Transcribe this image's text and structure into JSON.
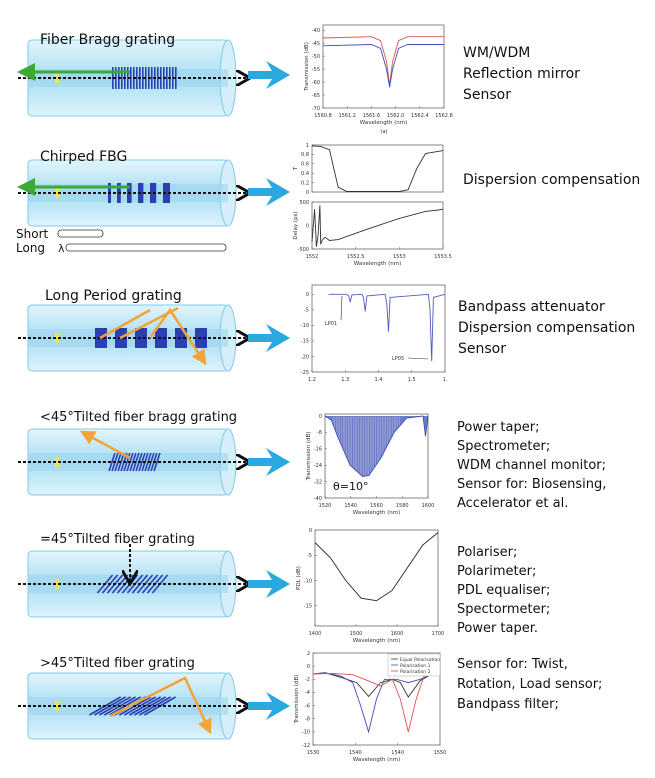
{
  "colors": {
    "fiber": "#bfe6f5",
    "fiber_edge": "#7fcbe8",
    "grating": "#2b3fb0",
    "arrow_blue": "#29a9e0",
    "reflect_green": "#3aa935",
    "cladding_mode": "#f2a33a",
    "core_line": "#111111"
  },
  "rows": [
    {
      "title": "Fiber Bragg grating",
      "applications": [
        "WM/WDM",
        "Reflection mirror",
        "Sensor"
      ]
    },
    {
      "title": "Chirped FBG",
      "applications": [
        "Dispersion compensation"
      ],
      "chirp_labels": {
        "short": "Short",
        "long": "Long",
        "lambda": "λ"
      }
    },
    {
      "title": "Long Period grating",
      "applications": [
        "Bandpass attenuator",
        "Dispersion compensation",
        "Sensor"
      ]
    },
    {
      "title": "<45°Tilted fiber bragg grating",
      "applications": [
        "Power taper;",
        "Spectrometer;",
        "WDM channel monitor;",
        "Sensor for: Biosensing,",
        " Accelerator et al."
      ]
    },
    {
      "title": "=45°Tilted fiber grating",
      "applications": [
        "Polariser;",
        "Polarimeter;",
        "PDL equaliser;",
        "Spectormeter;",
        "Power taper."
      ]
    },
    {
      "title": ">45°Tilted  fiber grating",
      "applications": [
        "Sensor for: Twist,",
        "Rotation, Load sensor;",
        "Bandpass filter;"
      ]
    }
  ],
  "chart_data": [
    {
      "type": "line",
      "xlabel": "Wavelength (nm)",
      "ylabel": "Transmission (dB)",
      "caption": "(a)",
      "xlim": [
        1560.8,
        1562.8
      ],
      "ylim": [
        -70,
        -38
      ],
      "xticks": [
        "1560.8",
        "1561.2",
        "1561.6",
        "1562.0",
        "1562.4",
        "1562.8"
      ],
      "yticks": [
        "-40",
        "-45",
        "-50",
        "-55",
        "-60",
        "-65",
        "-70"
      ],
      "series": [
        {
          "color": "#d9534f",
          "x": [
            1560.8,
            1561.6,
            1561.75,
            1561.85,
            1561.9,
            1561.95,
            1562.05,
            1562.2,
            1562.8
          ],
          "y": [
            -43,
            -42.5,
            -44,
            -52,
            -61,
            -52,
            -44,
            -42.5,
            -42.5
          ]
        },
        {
          "color": "#3f51b5",
          "x": [
            1560.8,
            1561.6,
            1561.75,
            1561.85,
            1561.9,
            1561.95,
            1562.05,
            1562.2,
            1562.8
          ],
          "y": [
            -46,
            -45.5,
            -47,
            -55,
            -62,
            -55,
            -47,
            -45.5,
            -45.5
          ]
        }
      ]
    },
    {
      "type": "line",
      "panels": [
        {
          "ylabel": "T",
          "xlim": [
            1552,
            1553.5
          ],
          "ylim": [
            0,
            1
          ],
          "yticks": [
            "0",
            "0.2",
            "0.4",
            "0.6",
            "0.8",
            "1"
          ],
          "series": [
            {
              "color": "#333",
              "x": [
                1552,
                1552.1,
                1552.2,
                1552.25,
                1552.3,
                1552.4,
                1553,
                1553.1,
                1553.2,
                1553.3,
                1553.5
              ],
              "y": [
                0.98,
                0.97,
                0.9,
                0.5,
                0.1,
                0.01,
                0.01,
                0.05,
                0.5,
                0.82,
                0.88
              ]
            }
          ]
        },
        {
          "ylabel": "Delay (ps)",
          "xlabel": "Wavelength (nm)",
          "xlim": [
            1552,
            1553.5
          ],
          "ylim": [
            -500,
            500
          ],
          "xticks": [
            "1552",
            "1552.5",
            "1553",
            "1553.5"
          ],
          "yticks": [
            "500",
            "0",
            "-500"
          ],
          "series": [
            {
              "color": "#333",
              "x": [
                1552,
                1552.03,
                1552.05,
                1552.07,
                1552.09,
                1552.1,
                1552.12,
                1552.15,
                1552.2,
                1552.3,
                1552.6,
                1553,
                1553.3,
                1553.45,
                1553.5
              ],
              "y": [
                -350,
                350,
                -450,
                -200,
                430,
                -400,
                -300,
                -250,
                -320,
                -300,
                -100,
                150,
                300,
                330,
                350
              ]
            }
          ]
        }
      ]
    },
    {
      "type": "line",
      "xlim": [
        1.2,
        1.6
      ],
      "ylim": [
        -25,
        3
      ],
      "xticks": [
        "1.2",
        "1.3",
        "1.4",
        "1.5",
        "1."
      ],
      "yticks": [
        "0",
        "-5",
        "-10",
        "-15",
        "-20",
        "-25"
      ],
      "annotations": [
        "LP01",
        "LP05"
      ],
      "series": [
        {
          "color": "#4a5fc1",
          "x": [
            1.25,
            1.3,
            1.31,
            1.315,
            1.32,
            1.35,
            1.355,
            1.36,
            1.365,
            1.42,
            1.425,
            1.43,
            1.435,
            1.55,
            1.555,
            1.56,
            1.565,
            1.6
          ],
          "y": [
            0,
            0,
            -0.3,
            -2.5,
            -0.2,
            0,
            -1,
            -5.5,
            -0.5,
            0,
            -3,
            -12,
            -1,
            0,
            -5,
            -21.5,
            -1,
            0
          ]
        }
      ]
    },
    {
      "type": "area",
      "xlabel": "Wavelength (nm)",
      "ylabel": "Transmission (dB)",
      "annotation": "θ=10°",
      "xlim": [
        1520,
        1602
      ],
      "ylim": [
        -40,
        1
      ],
      "xticks": [
        "1520",
        "1540",
        "1560",
        "1580",
        "1600"
      ],
      "yticks": [
        "0",
        "-8",
        "-16",
        "-24",
        "-32",
        "-40"
      ],
      "series": [
        {
          "color": "#3f51b5",
          "x": [
            1520,
            1525,
            1530,
            1540,
            1550,
            1555,
            1565,
            1575,
            1585,
            1598,
            1600,
            1602
          ],
          "y": [
            0,
            -2,
            -10,
            -24,
            -29.5,
            -29,
            -20,
            -8,
            -1,
            0,
            -10,
            0
          ]
        }
      ]
    },
    {
      "type": "line",
      "xlabel": "Wavelength (nm)",
      "ylabel": "PDL (dB)",
      "xlim": [
        1300,
        1700
      ],
      "ylim": [
        -19,
        0
      ],
      "xticks": [
        "1400",
        "1500",
        "1600",
        "1700"
      ],
      "yticks": [
        "0",
        "-5",
        "-10",
        "-15"
      ],
      "series": [
        {
          "color": "#222",
          "x": [
            1300,
            1350,
            1400,
            1450,
            1500,
            1550,
            1600,
            1650,
            1700
          ],
          "y": [
            -2.5,
            -5.5,
            -10,
            -13.5,
            -14,
            -12,
            -7.5,
            -3,
            -0.5
          ]
        }
      ]
    },
    {
      "type": "line",
      "xlabel": "Wavelength (nm)",
      "ylabel": "Transmission (dB)",
      "xlim": [
        1525,
        1557
      ],
      "ylim": [
        -12,
        2
      ],
      "xticks": [
        "1530",
        "1540",
        "1540",
        "1550"
      ],
      "yticks": [
        "2",
        "0",
        "-2",
        "-4",
        "-6",
        "-8",
        "-10",
        "-12"
      ],
      "legend": [
        "Equal Polarisation",
        "Polarisation 1",
        "Polarisation 2"
      ],
      "legend_position": "top-right",
      "series": [
        {
          "name": "Equal Polarisation",
          "color": "#333",
          "x": [
            1525,
            1528,
            1532,
            1536,
            1539,
            1542,
            1545,
            1547,
            1549,
            1552,
            1555,
            1557
          ],
          "y": [
            -1.2,
            -1,
            -1.7,
            -2.5,
            -4.6,
            -2.5,
            -2,
            -2.5,
            -4.7,
            -2.2,
            -1.2,
            -1.4
          ]
        },
        {
          "name": "Polarisation 1",
          "color": "#3f51b5",
          "x": [
            1525,
            1528,
            1532,
            1535,
            1537,
            1539,
            1541,
            1543,
            1546,
            1549,
            1552,
            1555,
            1557
          ],
          "y": [
            -1.2,
            -1,
            -1.5,
            -2.5,
            -6,
            -10,
            -5,
            -2,
            -2,
            -2.5,
            -2,
            -1.2,
            -1.4
          ]
        },
        {
          "name": "Polarisation 2",
          "color": "#d9534f",
          "x": [
            1525,
            1530,
            1535,
            1540,
            1542,
            1545,
            1547,
            1549,
            1551,
            1553,
            1555,
            1557
          ],
          "y": [
            -1.2,
            -1.1,
            -1.3,
            -2.5,
            -3,
            -2,
            -5,
            -10,
            -5,
            -1.5,
            -1.2,
            -1.4
          ]
        }
      ]
    }
  ]
}
